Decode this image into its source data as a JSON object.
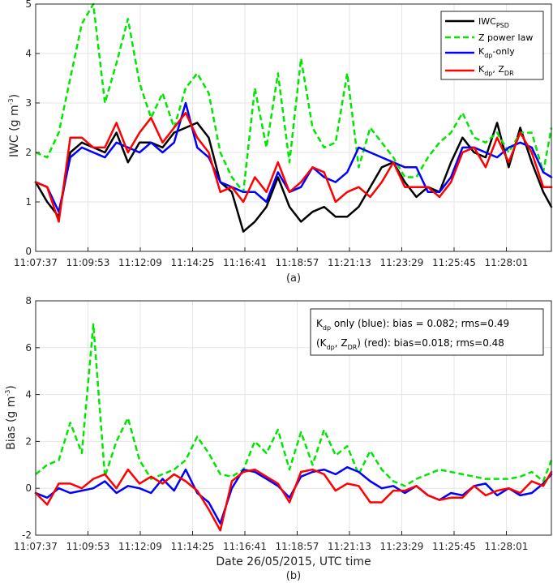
{
  "figure": {
    "panel_a_caption": "(a)",
    "panel_b_caption": "(b)",
    "x_title": "Date 26/05/2015, UTC time"
  },
  "legend": {
    "iwc_psd": {
      "main": "IWC",
      "sub": "PSD"
    },
    "z_power_law": "Z power law",
    "kdp_only": {
      "main": "K",
      "sub": "dp",
      "rest": "-only"
    },
    "kdp_zdr": {
      "main": "K",
      "sub": "dp",
      "mid": ", Z",
      "sub2": "DR"
    }
  },
  "info_box": {
    "line1": {
      "main": "K",
      "sub": "dp",
      "rest": " only (blue): bias = 0.082; rms=0.49"
    },
    "line2": {
      "open": "(K",
      "sub": "dp",
      "mid": ", Z",
      "sub2": "DR",
      "rest": ") (red): bias=0.018; rms=0.48"
    }
  },
  "colors": {
    "iwc_psd": "#000000",
    "z_power_law": "#00e600",
    "kdp_only": "#0000ff",
    "kdp_zdr": "#ff0000",
    "grid": "#e6e6e6",
    "axis": "#262626"
  },
  "chart_data": [
    {
      "type": "line",
      "panel": "a",
      "ylabel": {
        "main": "IWC (g m",
        "sup": "-3",
        "end": ")"
      },
      "ylim": [
        0,
        5
      ],
      "yticks": [
        "0",
        "1",
        "2",
        "3",
        "4",
        "5"
      ],
      "xlim": [
        "11:07:37",
        "11:29:58"
      ],
      "xticks": [
        "11:07:37",
        "11:09:53",
        "11:12:09",
        "11:14:25",
        "11:16:41",
        "11:18:57",
        "11:21:13",
        "11:23:29",
        "11:25:45",
        "11:28:01"
      ],
      "grid": true,
      "legend_position": "top-right",
      "series": [
        {
          "name": "IWC_PSD",
          "style": "solid",
          "x": [
            "11:07:37",
            "11:08:07",
            "11:08:37",
            "11:09:07",
            "11:09:37",
            "11:10:07",
            "11:10:37",
            "11:11:07",
            "11:11:37",
            "11:12:07",
            "11:12:37",
            "11:13:07",
            "11:13:37",
            "11:14:07",
            "11:14:37",
            "11:15:07",
            "11:15:37",
            "11:16:07",
            "11:16:37",
            "11:17:07",
            "11:17:37",
            "11:18:07",
            "11:18:37",
            "11:19:07",
            "11:19:37",
            "11:20:07",
            "11:20:37",
            "11:21:07",
            "11:21:37",
            "11:22:07",
            "11:22:37",
            "11:23:07",
            "11:23:37",
            "11:24:07",
            "11:24:37",
            "11:25:07",
            "11:25:37",
            "11:26:07",
            "11:26:37",
            "11:27:07",
            "11:27:37",
            "11:28:07",
            "11:28:37",
            "11:29:07",
            "11:29:37",
            "11:29:58"
          ],
          "values": [
            1.4,
            1.0,
            0.7,
            2.0,
            2.2,
            2.1,
            2.0,
            2.4,
            1.8,
            2.2,
            2.2,
            2.1,
            2.4,
            2.5,
            2.6,
            2.3,
            1.4,
            1.2,
            0.4,
            0.6,
            0.9,
            1.5,
            0.9,
            0.6,
            0.8,
            0.9,
            0.7,
            0.7,
            0.9,
            1.3,
            1.7,
            1.8,
            1.4,
            1.1,
            1.3,
            1.2,
            1.8,
            2.3,
            2.0,
            1.9,
            2.6,
            1.7,
            2.5,
            1.8,
            1.2,
            0.9
          ]
        },
        {
          "name": "Z power law",
          "style": "dashed",
          "x": [
            "11:07:37",
            "11:08:07",
            "11:08:37",
            "11:09:07",
            "11:09:37",
            "11:10:07",
            "11:10:37",
            "11:11:07",
            "11:11:37",
            "11:12:07",
            "11:12:37",
            "11:13:07",
            "11:13:37",
            "11:14:07",
            "11:14:37",
            "11:15:07",
            "11:15:37",
            "11:16:07",
            "11:16:37",
            "11:17:07",
            "11:17:37",
            "11:18:07",
            "11:18:37",
            "11:19:07",
            "11:19:37",
            "11:20:07",
            "11:20:37",
            "11:21:07",
            "11:21:37",
            "11:22:07",
            "11:22:37",
            "11:23:07",
            "11:23:37",
            "11:24:07",
            "11:24:37",
            "11:25:07",
            "11:25:37",
            "11:26:07",
            "11:26:37",
            "11:27:07",
            "11:27:37",
            "11:28:07",
            "11:28:37",
            "11:29:07",
            "11:29:37",
            "11:29:58"
          ],
          "values": [
            2.0,
            1.9,
            2.4,
            3.5,
            4.6,
            5.0,
            3.0,
            3.8,
            4.7,
            3.4,
            2.7,
            3.2,
            2.5,
            3.3,
            3.6,
            3.2,
            2.0,
            1.5,
            1.2,
            3.3,
            2.1,
            3.6,
            1.8,
            3.9,
            2.5,
            2.1,
            2.2,
            3.6,
            1.7,
            2.5,
            2.2,
            1.9,
            1.5,
            1.5,
            1.9,
            2.2,
            2.4,
            2.8,
            2.3,
            2.2,
            2.4,
            2.0,
            2.4,
            2.4,
            1.6,
            2.5
          ]
        },
        {
          "name": "Kdp-only",
          "style": "solid",
          "x": [
            "11:07:37",
            "11:08:07",
            "11:08:37",
            "11:09:07",
            "11:09:37",
            "11:10:07",
            "11:10:37",
            "11:11:07",
            "11:11:37",
            "11:12:07",
            "11:12:37",
            "11:13:07",
            "11:13:37",
            "11:14:07",
            "11:14:37",
            "11:15:07",
            "11:15:37",
            "11:16:07",
            "11:16:37",
            "11:17:07",
            "11:17:37",
            "11:18:07",
            "11:18:37",
            "11:19:07",
            "11:19:37",
            "11:20:07",
            "11:20:37",
            "11:21:07",
            "11:21:37",
            "11:22:07",
            "11:22:37",
            "11:23:07",
            "11:23:37",
            "11:24:07",
            "11:24:37",
            "11:25:07",
            "11:25:37",
            "11:26:07",
            "11:26:37",
            "11:27:07",
            "11:27:37",
            "11:28:07",
            "11:28:37",
            "11:29:07",
            "11:29:37",
            "11:29:58"
          ],
          "values": [
            1.4,
            1.3,
            0.8,
            1.9,
            2.1,
            2.0,
            1.9,
            2.2,
            2.1,
            2.0,
            2.2,
            2.0,
            2.2,
            3.0,
            2.1,
            1.9,
            1.4,
            1.3,
            1.2,
            1.2,
            1.0,
            1.6,
            1.2,
            1.3,
            1.7,
            1.5,
            1.4,
            1.6,
            2.1,
            2.0,
            1.9,
            1.8,
            1.7,
            1.7,
            1.2,
            1.2,
            1.5,
            2.1,
            2.1,
            2.0,
            1.9,
            2.1,
            2.2,
            2.1,
            1.6,
            1.5
          ]
        },
        {
          "name": "Kdp, ZDR",
          "style": "solid",
          "x": [
            "11:07:37",
            "11:08:07",
            "11:08:37",
            "11:09:07",
            "11:09:37",
            "11:10:07",
            "11:10:37",
            "11:11:07",
            "11:11:37",
            "11:12:07",
            "11:12:37",
            "11:13:07",
            "11:13:37",
            "11:14:07",
            "11:14:37",
            "11:15:07",
            "11:15:37",
            "11:16:07",
            "11:16:37",
            "11:17:07",
            "11:17:37",
            "11:18:07",
            "11:18:37",
            "11:19:07",
            "11:19:37",
            "11:20:07",
            "11:20:37",
            "11:21:07",
            "11:21:37",
            "11:22:07",
            "11:22:37",
            "11:23:07",
            "11:23:37",
            "11:24:07",
            "11:24:37",
            "11:25:07",
            "11:25:37",
            "11:26:07",
            "11:26:37",
            "11:27:07",
            "11:27:37",
            "11:28:07",
            "11:28:37",
            "11:29:07",
            "11:29:37",
            "11:29:58"
          ],
          "values": [
            1.4,
            1.3,
            0.6,
            2.3,
            2.3,
            2.1,
            2.1,
            2.6,
            2.0,
            2.4,
            2.7,
            2.2,
            2.5,
            2.8,
            2.3,
            2.0,
            1.2,
            1.3,
            1.0,
            1.5,
            1.2,
            1.8,
            1.2,
            1.4,
            1.7,
            1.6,
            1.0,
            1.2,
            1.3,
            1.1,
            1.4,
            1.8,
            1.3,
            1.3,
            1.3,
            1.1,
            1.4,
            2.0,
            2.1,
            1.7,
            2.3,
            1.8,
            2.4,
            2.0,
            1.3,
            1.3
          ]
        }
      ]
    },
    {
      "type": "line",
      "panel": "b",
      "ylabel": {
        "main": "Bias (g m",
        "sup": "-3",
        "end": ")"
      },
      "ylim": [
        -2,
        8
      ],
      "yticks": [
        "-2",
        "0",
        "2",
        "4",
        "6",
        "8"
      ],
      "xlim": [
        "11:07:37",
        "11:29:58"
      ],
      "xticks": [
        "11:07:37",
        "11:09:53",
        "11:12:09",
        "11:14:25",
        "11:16:41",
        "11:18:57",
        "11:21:13",
        "11:23:29",
        "11:25:45",
        "11:28:01"
      ],
      "grid": true,
      "series": [
        {
          "name": "Z power law",
          "style": "dashed",
          "x": [
            "11:07:37",
            "11:08:07",
            "11:08:37",
            "11:09:07",
            "11:09:37",
            "11:10:07",
            "11:10:37",
            "11:11:07",
            "11:11:37",
            "11:12:07",
            "11:12:37",
            "11:13:07",
            "11:13:37",
            "11:14:07",
            "11:14:37",
            "11:15:07",
            "11:15:37",
            "11:16:07",
            "11:16:37",
            "11:17:07",
            "11:17:37",
            "11:18:07",
            "11:18:37",
            "11:19:07",
            "11:19:37",
            "11:20:07",
            "11:20:37",
            "11:21:07",
            "11:21:37",
            "11:22:07",
            "11:22:37",
            "11:23:07",
            "11:23:37",
            "11:24:07",
            "11:24:37",
            "11:25:07",
            "11:25:37",
            "11:26:07",
            "11:26:37",
            "11:27:07",
            "11:27:37",
            "11:28:07",
            "11:28:37",
            "11:29:07",
            "11:29:37",
            "11:29:58"
          ],
          "values": [
            0.6,
            1.0,
            1.2,
            2.8,
            1.5,
            7.0,
            0.5,
            2.0,
            3.0,
            1.2,
            0.4,
            0.6,
            0.8,
            1.2,
            2.2,
            1.5,
            0.6,
            0.5,
            0.8,
            2.0,
            1.5,
            2.5,
            0.8,
            2.4,
            1.0,
            2.5,
            1.4,
            1.8,
            0.6,
            1.6,
            0.8,
            0.3,
            0.1,
            0.4,
            0.6,
            0.8,
            0.7,
            0.6,
            0.5,
            0.4,
            0.4,
            0.4,
            0.5,
            0.7,
            0.3,
            1.2
          ]
        },
        {
          "name": "Kdp-only",
          "style": "solid",
          "x": [
            "11:07:37",
            "11:08:07",
            "11:08:37",
            "11:09:07",
            "11:09:37",
            "11:10:07",
            "11:10:37",
            "11:11:07",
            "11:11:37",
            "11:12:07",
            "11:12:37",
            "11:13:07",
            "11:13:37",
            "11:14:07",
            "11:14:37",
            "11:15:07",
            "11:15:37",
            "11:16:07",
            "11:16:37",
            "11:17:07",
            "11:17:37",
            "11:18:07",
            "11:18:37",
            "11:19:07",
            "11:19:37",
            "11:20:07",
            "11:20:37",
            "11:21:07",
            "11:21:37",
            "11:22:07",
            "11:22:37",
            "11:23:07",
            "11:23:37",
            "11:24:07",
            "11:24:37",
            "11:25:07",
            "11:25:37",
            "11:26:07",
            "11:26:37",
            "11:27:07",
            "11:27:37",
            "11:28:07",
            "11:28:37",
            "11:29:07",
            "11:29:37",
            "11:29:58"
          ],
          "values": [
            -0.2,
            -0.4,
            0.0,
            -0.2,
            -0.1,
            0.0,
            0.3,
            -0.2,
            0.1,
            0.0,
            -0.2,
            0.4,
            -0.1,
            0.8,
            -0.2,
            -0.6,
            -1.5,
            0.0,
            0.8,
            0.7,
            0.4,
            0.1,
            -0.4,
            0.5,
            0.7,
            0.8,
            0.6,
            0.9,
            0.7,
            0.3,
            0.0,
            0.1,
            -0.2,
            0.1,
            -0.3,
            -0.5,
            -0.2,
            -0.3,
            0.1,
            0.2,
            -0.3,
            0.0,
            -0.3,
            -0.2,
            0.2,
            0.6
          ]
        },
        {
          "name": "Kdp, ZDR",
          "style": "solid",
          "x": [
            "11:07:37",
            "11:08:07",
            "11:08:37",
            "11:09:07",
            "11:09:37",
            "11:10:07",
            "11:10:37",
            "11:11:07",
            "11:11:37",
            "11:12:07",
            "11:12:37",
            "11:13:07",
            "11:13:37",
            "11:14:07",
            "11:14:37",
            "11:15:07",
            "11:15:37",
            "11:16:07",
            "11:16:37",
            "11:17:07",
            "11:17:37",
            "11:18:07",
            "11:18:37",
            "11:19:07",
            "11:19:37",
            "11:20:07",
            "11:20:37",
            "11:21:07",
            "11:21:37",
            "11:22:07",
            "11:22:37",
            "11:23:07",
            "11:23:37",
            "11:24:07",
            "11:24:37",
            "11:25:07",
            "11:25:37",
            "11:26:07",
            "11:26:37",
            "11:27:07",
            "11:27:37",
            "11:28:07",
            "11:28:37",
            "11:29:07",
            "11:29:37",
            "11:29:58"
          ],
          "values": [
            -0.2,
            -0.7,
            0.2,
            0.2,
            0.0,
            0.4,
            0.6,
            0.0,
            0.8,
            0.2,
            0.5,
            0.2,
            0.6,
            0.3,
            -0.1,
            -0.9,
            -1.8,
            0.3,
            0.7,
            0.8,
            0.5,
            0.2,
            -0.6,
            0.7,
            0.8,
            0.6,
            -0.1,
            0.2,
            0.1,
            -0.6,
            -0.6,
            -0.1,
            -0.1,
            0.1,
            -0.3,
            -0.5,
            -0.4,
            -0.4,
            0.1,
            -0.3,
            -0.1,
            0.0,
            -0.2,
            0.3,
            0.1,
            0.7
          ]
        }
      ]
    }
  ]
}
